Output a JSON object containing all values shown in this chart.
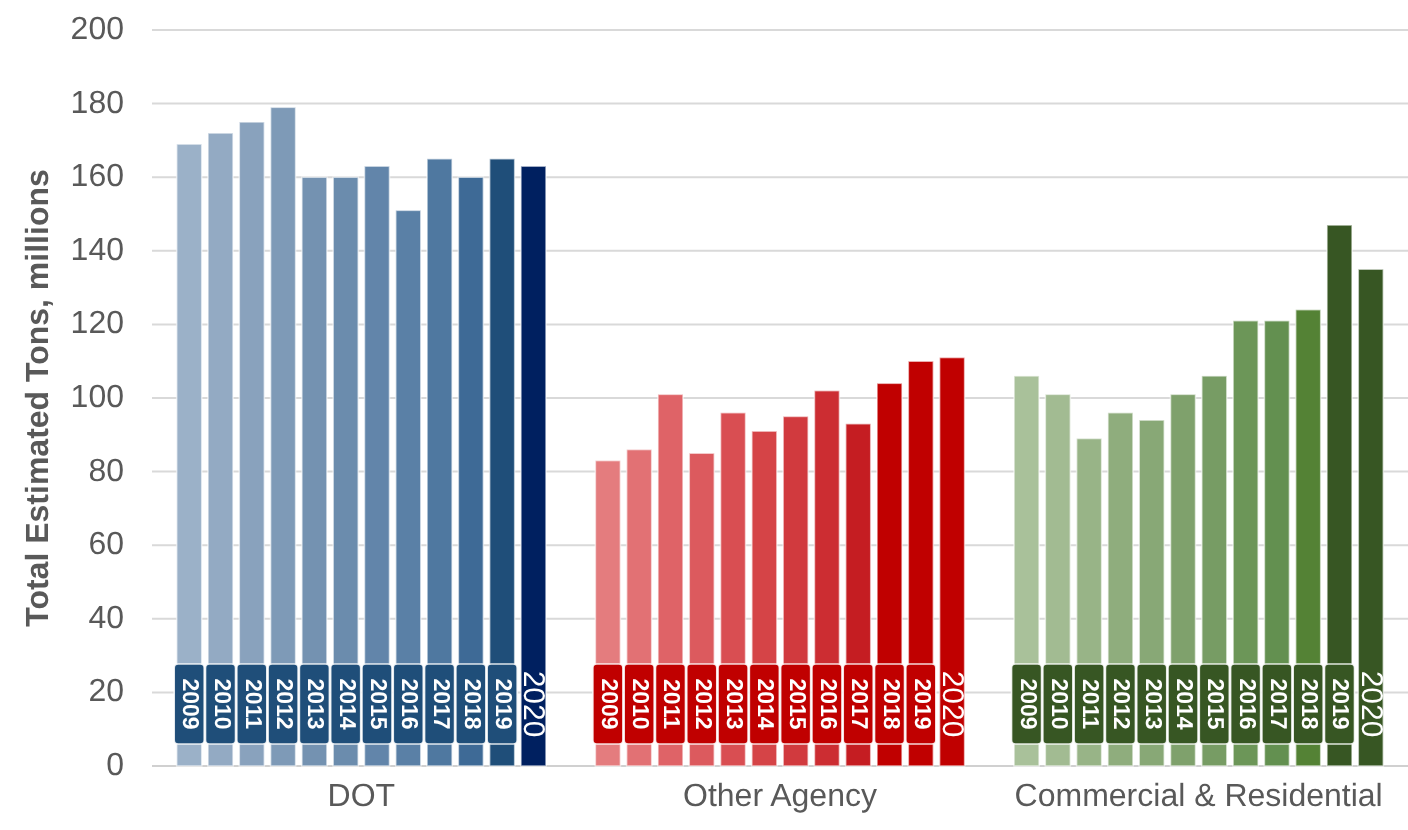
{
  "chart_data": {
    "type": "bar",
    "ylabel": "Total Estimated Tons, millions",
    "categories": [
      "DOT",
      "Other Agency",
      "Commercial & Residential"
    ],
    "series": [
      {
        "name": "2009",
        "colors": [
          "#9bb1c8",
          "#e47c7e",
          "#a9c19a"
        ],
        "values": [
          169,
          83,
          106
        ]
      },
      {
        "name": "2010",
        "colors": [
          "#93aac3",
          "#e27174",
          "#a2bb92"
        ],
        "values": [
          172,
          86,
          101
        ]
      },
      {
        "name": "2011",
        "colors": [
          "#89a2bd",
          "#df6367",
          "#98b487"
        ],
        "values": [
          175,
          101,
          89
        ]
      },
      {
        "name": "2012",
        "colors": [
          "#7e9ab7",
          "#dc5a5e",
          "#8fad7d"
        ],
        "values": [
          179,
          85,
          96
        ]
      },
      {
        "name": "2013",
        "colors": [
          "#7492b1",
          "#d94e52",
          "#88a876"
        ],
        "values": [
          160,
          96,
          94
        ]
      },
      {
        "name": "2014",
        "colors": [
          "#6b8cad",
          "#d54447",
          "#7fa16c"
        ],
        "values": [
          160,
          91,
          101
        ]
      },
      {
        "name": "2015",
        "colors": [
          "#6285aa",
          "#d13a3e",
          "#779c64"
        ],
        "values": [
          163,
          95,
          106
        ]
      },
      {
        "name": "2016",
        "colors": [
          "#5a80a6",
          "#cc2d32",
          "#6c9658"
        ],
        "values": [
          151,
          102,
          121
        ]
      },
      {
        "name": "2017",
        "colors": [
          "#4f78a0",
          "#c51d22",
          "#639050"
        ],
        "values": [
          165,
          93,
          121
        ]
      },
      {
        "name": "2018",
        "colors": [
          "#3e6a96",
          "#c00000",
          "#548235"
        ],
        "values": [
          160,
          104,
          124
        ]
      },
      {
        "name": "2019",
        "colors": [
          "#1f4e79",
          "#c00000",
          "#375623"
        ],
        "values": [
          165,
          110,
          147
        ]
      },
      {
        "name": "2020",
        "colors": [
          "#002060",
          "#c00000",
          "#375623"
        ],
        "values": [
          163,
          111,
          135
        ]
      }
    ],
    "ylim": [
      0,
      200
    ],
    "yticks": [
      0,
      20,
      40,
      60,
      80,
      100,
      120,
      140,
      160,
      180,
      200
    ],
    "grid": "y"
  }
}
